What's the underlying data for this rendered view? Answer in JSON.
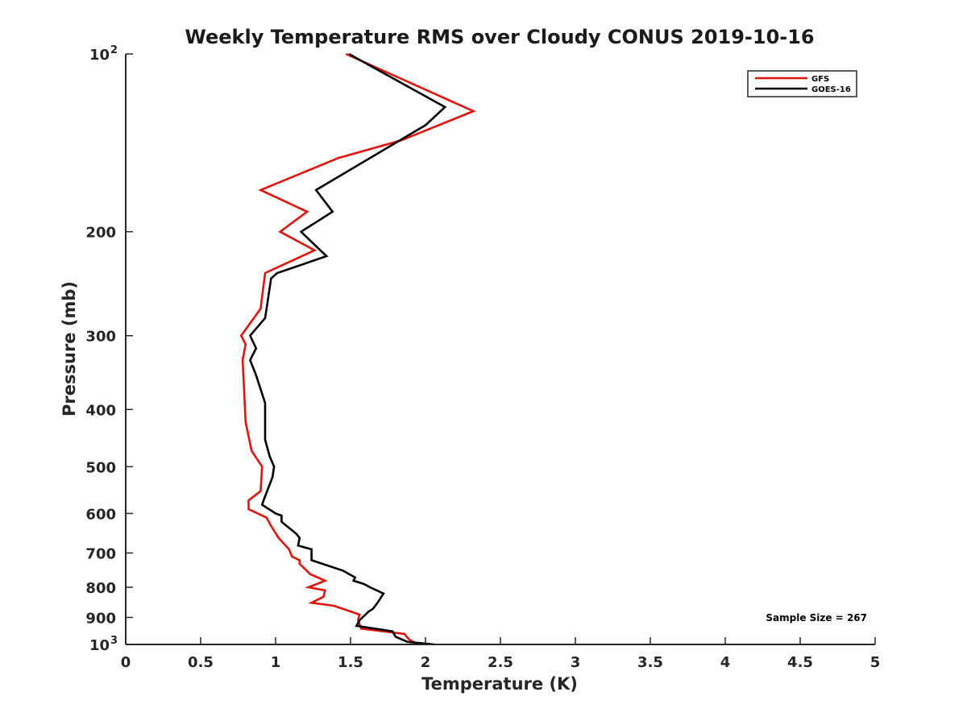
{
  "chart_data": {
    "type": "line",
    "title": "Weekly Temperature RMS over Cloudy CONUS 2019-10-16",
    "xlabel": "Temperature (K)",
    "ylabel": "Pressure (mb)",
    "xlim": [
      0,
      5
    ],
    "ylim": [
      100,
      1000
    ],
    "y_scale": "log",
    "y_reversed": true,
    "x_ticks": [
      {
        "value": 0,
        "label": "0"
      },
      {
        "value": 0.5,
        "label": "0.5"
      },
      {
        "value": 1,
        "label": "1"
      },
      {
        "value": 1.5,
        "label": "1.5"
      },
      {
        "value": 2,
        "label": "2"
      },
      {
        "value": 2.5,
        "label": "2.5"
      },
      {
        "value": 3,
        "label": "3"
      },
      {
        "value": 3.5,
        "label": "3.5"
      },
      {
        "value": 4,
        "label": "4"
      },
      {
        "value": 4.5,
        "label": "4.5"
      },
      {
        "value": 5,
        "label": "5"
      }
    ],
    "y_ticks": [
      {
        "value": 100,
        "label": "10",
        "sup": "2"
      },
      {
        "value": 200,
        "label": "200"
      },
      {
        "value": 300,
        "label": "300"
      },
      {
        "value": 400,
        "label": "400"
      },
      {
        "value": 500,
        "label": "500"
      },
      {
        "value": 600,
        "label": "600"
      },
      {
        "value": 700,
        "label": "700"
      },
      {
        "value": 800,
        "label": "800"
      },
      {
        "value": 900,
        "label": "900"
      },
      {
        "value": 1000,
        "label": "10",
        "sup": "3"
      }
    ],
    "legend_position": "top-right",
    "annotation": "Sample Size = 267",
    "grid": false,
    "series": [
      {
        "name": "GFS",
        "color": "#e3120b",
        "points": [
          [
            1.47,
            100
          ],
          [
            2.32,
            125
          ],
          [
            1.84,
            140
          ],
          [
            1.42,
            150
          ],
          [
            0.9,
            170
          ],
          [
            1.21,
            185
          ],
          [
            1.03,
            200
          ],
          [
            1.26,
            215
          ],
          [
            0.93,
            235
          ],
          [
            0.9,
            270
          ],
          [
            0.77,
            300
          ],
          [
            0.8,
            310
          ],
          [
            0.78,
            330
          ],
          [
            0.79,
            370
          ],
          [
            0.8,
            420
          ],
          [
            0.84,
            470
          ],
          [
            0.91,
            500
          ],
          [
            0.9,
            550
          ],
          [
            0.82,
            570
          ],
          [
            0.82,
            590
          ],
          [
            0.94,
            610
          ],
          [
            0.97,
            630
          ],
          [
            1.02,
            660
          ],
          [
            1.09,
            690
          ],
          [
            1.11,
            710
          ],
          [
            1.16,
            720
          ],
          [
            1.16,
            730
          ],
          [
            1.23,
            760
          ],
          [
            1.33,
            780
          ],
          [
            1.22,
            800
          ],
          [
            1.33,
            810
          ],
          [
            1.32,
            830
          ],
          [
            1.24,
            850
          ],
          [
            1.39,
            860
          ],
          [
            1.56,
            890
          ],
          [
            1.55,
            910
          ],
          [
            1.57,
            940
          ],
          [
            1.86,
            960
          ],
          [
            1.89,
            980
          ],
          [
            1.95,
            1000
          ]
        ]
      },
      {
        "name": "GOES-16",
        "color": "#000000",
        "points": [
          [
            1.49,
            100
          ],
          [
            2.13,
            123
          ],
          [
            2.0,
            132
          ],
          [
            1.27,
            170
          ],
          [
            1.38,
            185
          ],
          [
            1.17,
            200
          ],
          [
            1.34,
            220
          ],
          [
            1.01,
            235
          ],
          [
            0.97,
            240
          ],
          [
            0.94,
            270
          ],
          [
            0.93,
            280
          ],
          [
            0.83,
            300
          ],
          [
            0.87,
            315
          ],
          [
            0.83,
            330
          ],
          [
            0.87,
            350
          ],
          [
            0.93,
            390
          ],
          [
            0.93,
            450
          ],
          [
            0.96,
            480
          ],
          [
            0.99,
            500
          ],
          [
            0.98,
            520
          ],
          [
            0.92,
            570
          ],
          [
            0.91,
            580
          ],
          [
            1.0,
            600
          ],
          [
            1.04,
            605
          ],
          [
            1.04,
            620
          ],
          [
            1.14,
            650
          ],
          [
            1.16,
            660
          ],
          [
            1.15,
            680
          ],
          [
            1.24,
            690
          ],
          [
            1.24,
            720
          ],
          [
            1.45,
            750
          ],
          [
            1.53,
            770
          ],
          [
            1.52,
            780
          ],
          [
            1.59,
            790
          ],
          [
            1.63,
            800
          ],
          [
            1.72,
            820
          ],
          [
            1.68,
            850
          ],
          [
            1.65,
            870
          ],
          [
            1.62,
            880
          ],
          [
            1.56,
            910
          ],
          [
            1.54,
            930
          ],
          [
            1.78,
            950
          ],
          [
            1.8,
            970
          ],
          [
            1.88,
            990
          ],
          [
            2.06,
            1000
          ]
        ]
      }
    ]
  }
}
